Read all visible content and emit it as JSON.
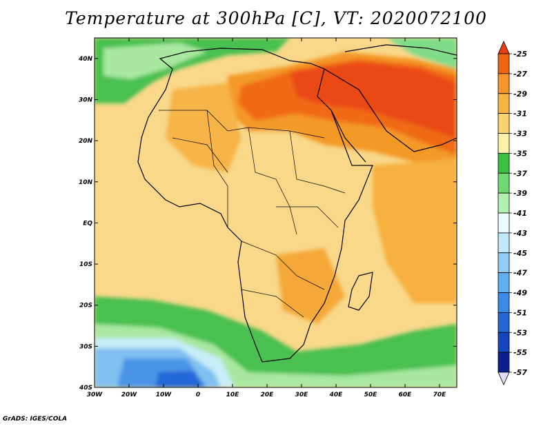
{
  "title": "Temperature at 300hPa [C], VT: 2020072100",
  "footer": "GrADS: IGES/COLA",
  "map": {
    "variable": "Temperature",
    "level": "300hPa",
    "units": "C",
    "valid_time": "2020072100",
    "lon_range": [
      -30,
      75
    ],
    "lat_range": [
      -40,
      45
    ],
    "lon_ticks": [
      "30W",
      "20W",
      "10W",
      "0",
      "10E",
      "20E",
      "30E",
      "40E",
      "50E",
      "60E",
      "70E"
    ],
    "lat_ticks": [
      "40N",
      "30N",
      "20N",
      "10N",
      "EQ",
      "10S",
      "20S",
      "30S",
      "40S"
    ],
    "colors": {
      "ocean_frame": "#f5d890"
    }
  },
  "colorbar": {
    "labels": [
      "-25",
      "-27",
      "-29",
      "-31",
      "-33",
      "-35",
      "-37",
      "-39",
      "-41",
      "-43",
      "-45",
      "-47",
      "-49",
      "-51",
      "-53",
      "-55",
      "-57"
    ],
    "colors": [
      "#e83c12",
      "#f06414",
      "#f59628",
      "#f8b440",
      "#fad46c",
      "#fdf0a8",
      "#38c040",
      "#70d870",
      "#b0f0b0",
      "#e8fcfa",
      "#c0e8f8",
      "#90ccf4",
      "#60aef0",
      "#3c8ae8",
      "#2468d8",
      "#1444c0",
      "#0c2090",
      "#e0dcf8"
    ]
  }
}
